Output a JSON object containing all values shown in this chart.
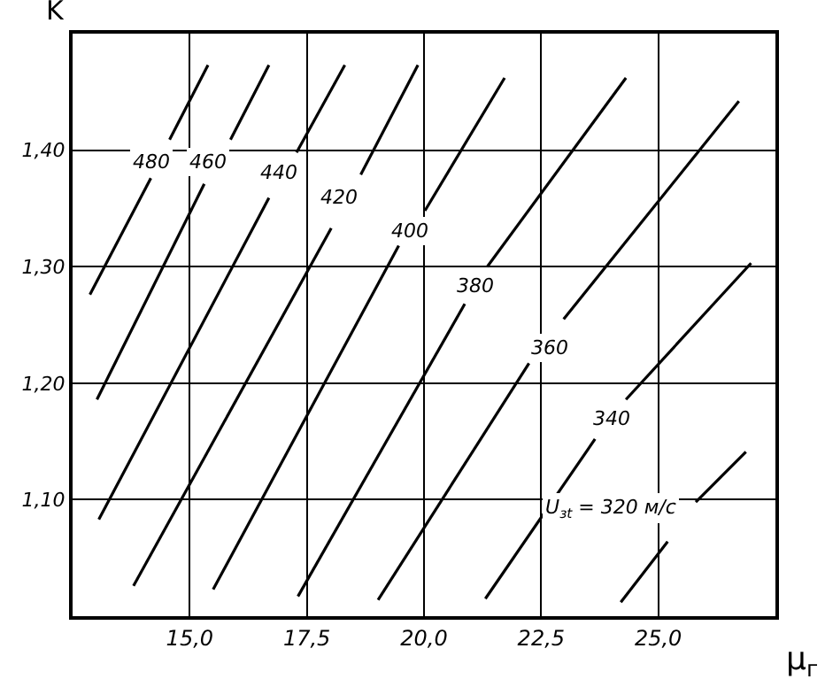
{
  "chart_data": {
    "type": "line",
    "xlabel": "μ$_{г}$",
    "ylabel": "K",
    "xlim": [
      12.5,
      27.5
    ],
    "ylim": [
      1.0,
      1.5
    ],
    "xticks": [
      {
        "value": 15,
        "label": "15,0"
      },
      {
        "value": 17.5,
        "label": "17,5"
      },
      {
        "value": 20,
        "label": "20,0"
      },
      {
        "value": 22.5,
        "label": "22,5"
      },
      {
        "value": 25,
        "label": "25,0"
      }
    ],
    "yticks": [
      {
        "value": 1.1,
        "label": "1,10"
      },
      {
        "value": 1.2,
        "label": "1,20"
      },
      {
        "value": 1.3,
        "label": "1,30"
      },
      {
        "value": 1.4,
        "label": "1,40"
      }
    ],
    "grid": true,
    "marker": "none",
    "series": [
      {
        "color": "#000000",
        "x": [
          12.87,
          14.17,
          null,
          14.57,
          15.39
        ],
        "values": [
          1.276,
          1.376,
          null,
          1.409,
          1.473
        ]
      },
      {
        "color": "#000000",
        "x": [
          13.02,
          15.31,
          null,
          15.87,
          16.69
        ],
        "values": [
          1.186,
          1.371,
          null,
          1.409,
          1.473
        ]
      },
      {
        "color": "#000000",
        "x": [
          13.06,
          16.69,
          null,
          17.28,
          18.31
        ],
        "values": [
          1.083,
          1.359,
          null,
          1.398,
          1.473
        ]
      },
      {
        "color": "#000000",
        "x": [
          13.8,
          18.02,
          null,
          18.65,
          19.87
        ],
        "values": [
          1.026,
          1.333,
          null,
          1.379,
          1.473
        ]
      },
      {
        "color": "#000000",
        "x": [
          15.5,
          19.46,
          null,
          20.02,
          21.72
        ],
        "values": [
          1.023,
          1.318,
          null,
          1.348,
          1.462
        ]
      },
      {
        "color": "#000000",
        "x": [
          17.31,
          20.87,
          null,
          21.35,
          24.31
        ],
        "values": [
          1.017,
          1.268,
          null,
          1.3,
          1.462
        ]
      },
      {
        "color": "#000000",
        "x": [
          19.02,
          22.24,
          null,
          22.98,
          26.72
        ],
        "values": [
          1.014,
          1.217,
          null,
          1.255,
          1.442
        ]
      },
      {
        "color": "#000000",
        "x": [
          21.31,
          23.65,
          null,
          24.31,
          26.98
        ],
        "values": [
          1.015,
          1.152,
          null,
          1.186,
          1.303
        ]
      },
      {
        "color": "#000000",
        "x": [
          24.2,
          25.2,
          null,
          25.8,
          26.87
        ],
        "values": [
          1.012,
          1.064,
          null,
          1.098,
          1.141
        ]
      }
    ],
    "annotations": [
      {
        "text": "480",
        "x": 14.2,
        "y": 1.39
      },
      {
        "text": "460",
        "x": 15.4,
        "y": 1.39
      },
      {
        "text": "440",
        "x": 16.9,
        "y": 1.38
      },
      {
        "text": "420",
        "x": 18.2,
        "y": 1.36
      },
      {
        "text": "400",
        "x": 19.7,
        "y": 1.33
      },
      {
        "text": "380",
        "x": 21.1,
        "y": 1.284
      },
      {
        "text": "360",
        "x": 22.7,
        "y": 1.23
      },
      {
        "text": "340",
        "x": 24.0,
        "y": 1.17
      },
      "U$_{зt}$ = 320 м/с"
    ]
  }
}
